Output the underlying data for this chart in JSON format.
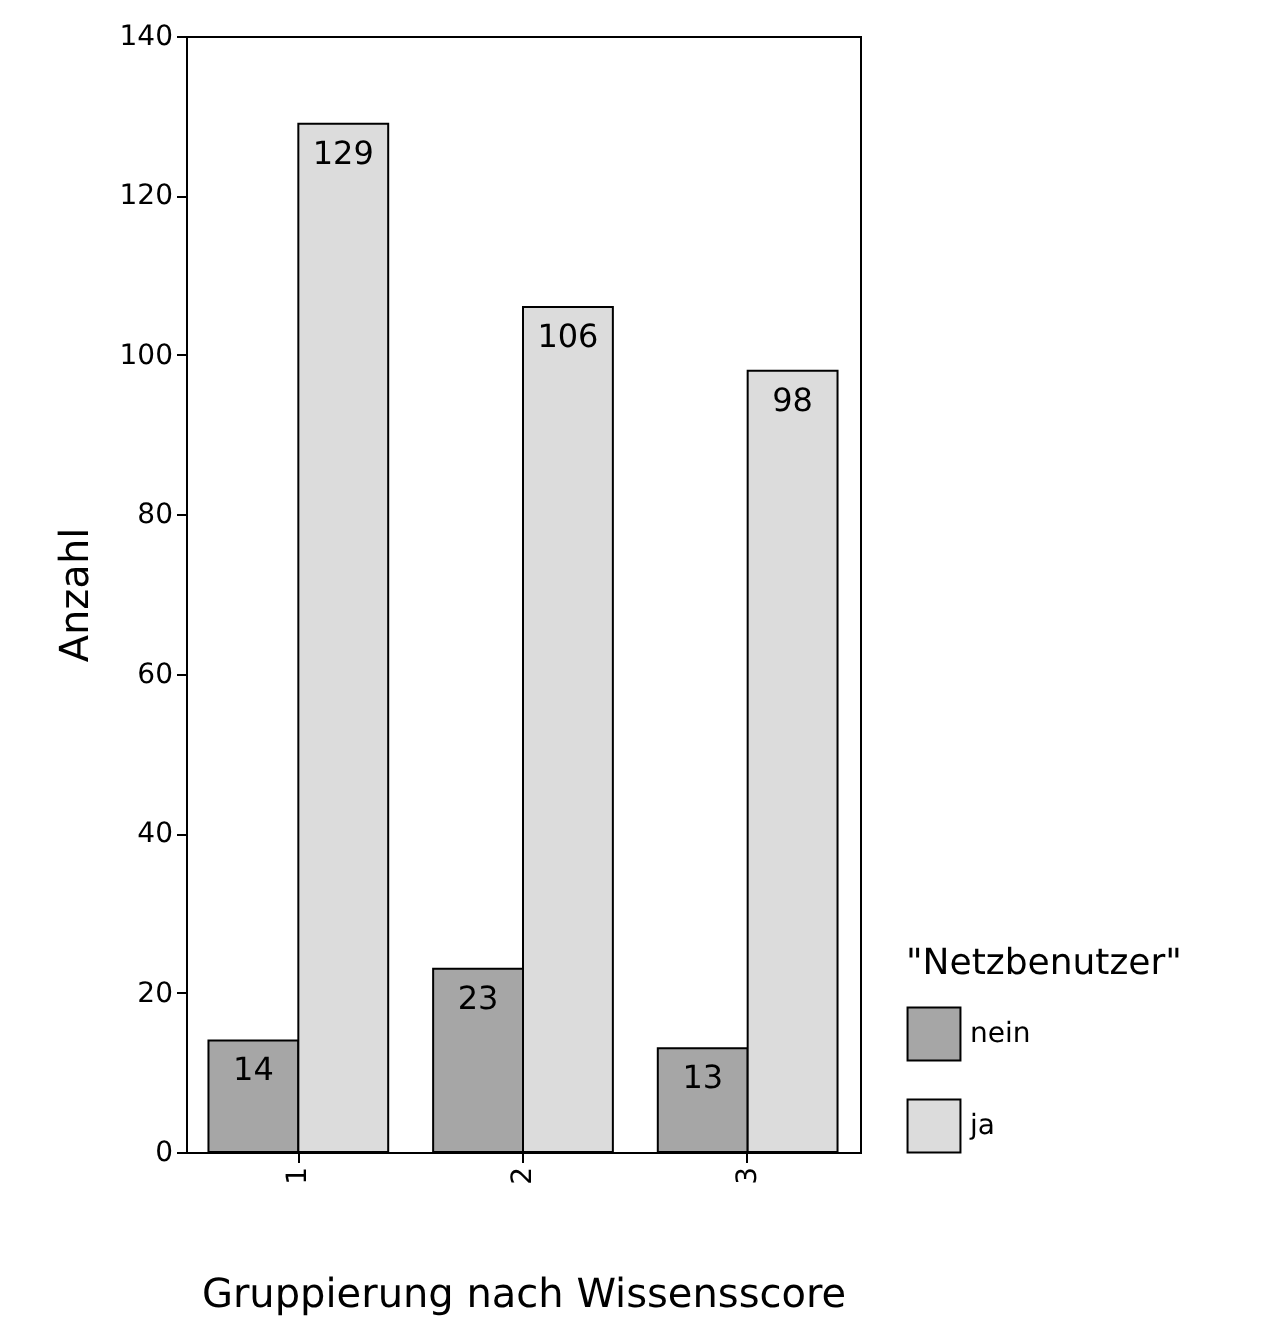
{
  "chart_data": {
    "type": "bar",
    "xlabel": "Gruppierung nach Wissensscore",
    "ylabel": "Anzahl",
    "legend_title": "\"Netzbenutzer\"",
    "legend": "right",
    "categories": [
      "1",
      "2",
      "3"
    ],
    "series": [
      {
        "name": "nein",
        "color": "#a6a6a6",
        "values": [
          14,
          23,
          13
        ]
      },
      {
        "name": "ja",
        "color": "#dcdcdc",
        "values": [
          129,
          106,
          98
        ]
      }
    ],
    "ylim": [
      0,
      140
    ],
    "yticks": [
      0,
      20,
      40,
      60,
      80,
      100,
      120,
      140
    ],
    "data_labels": true,
    "grid": false
  }
}
